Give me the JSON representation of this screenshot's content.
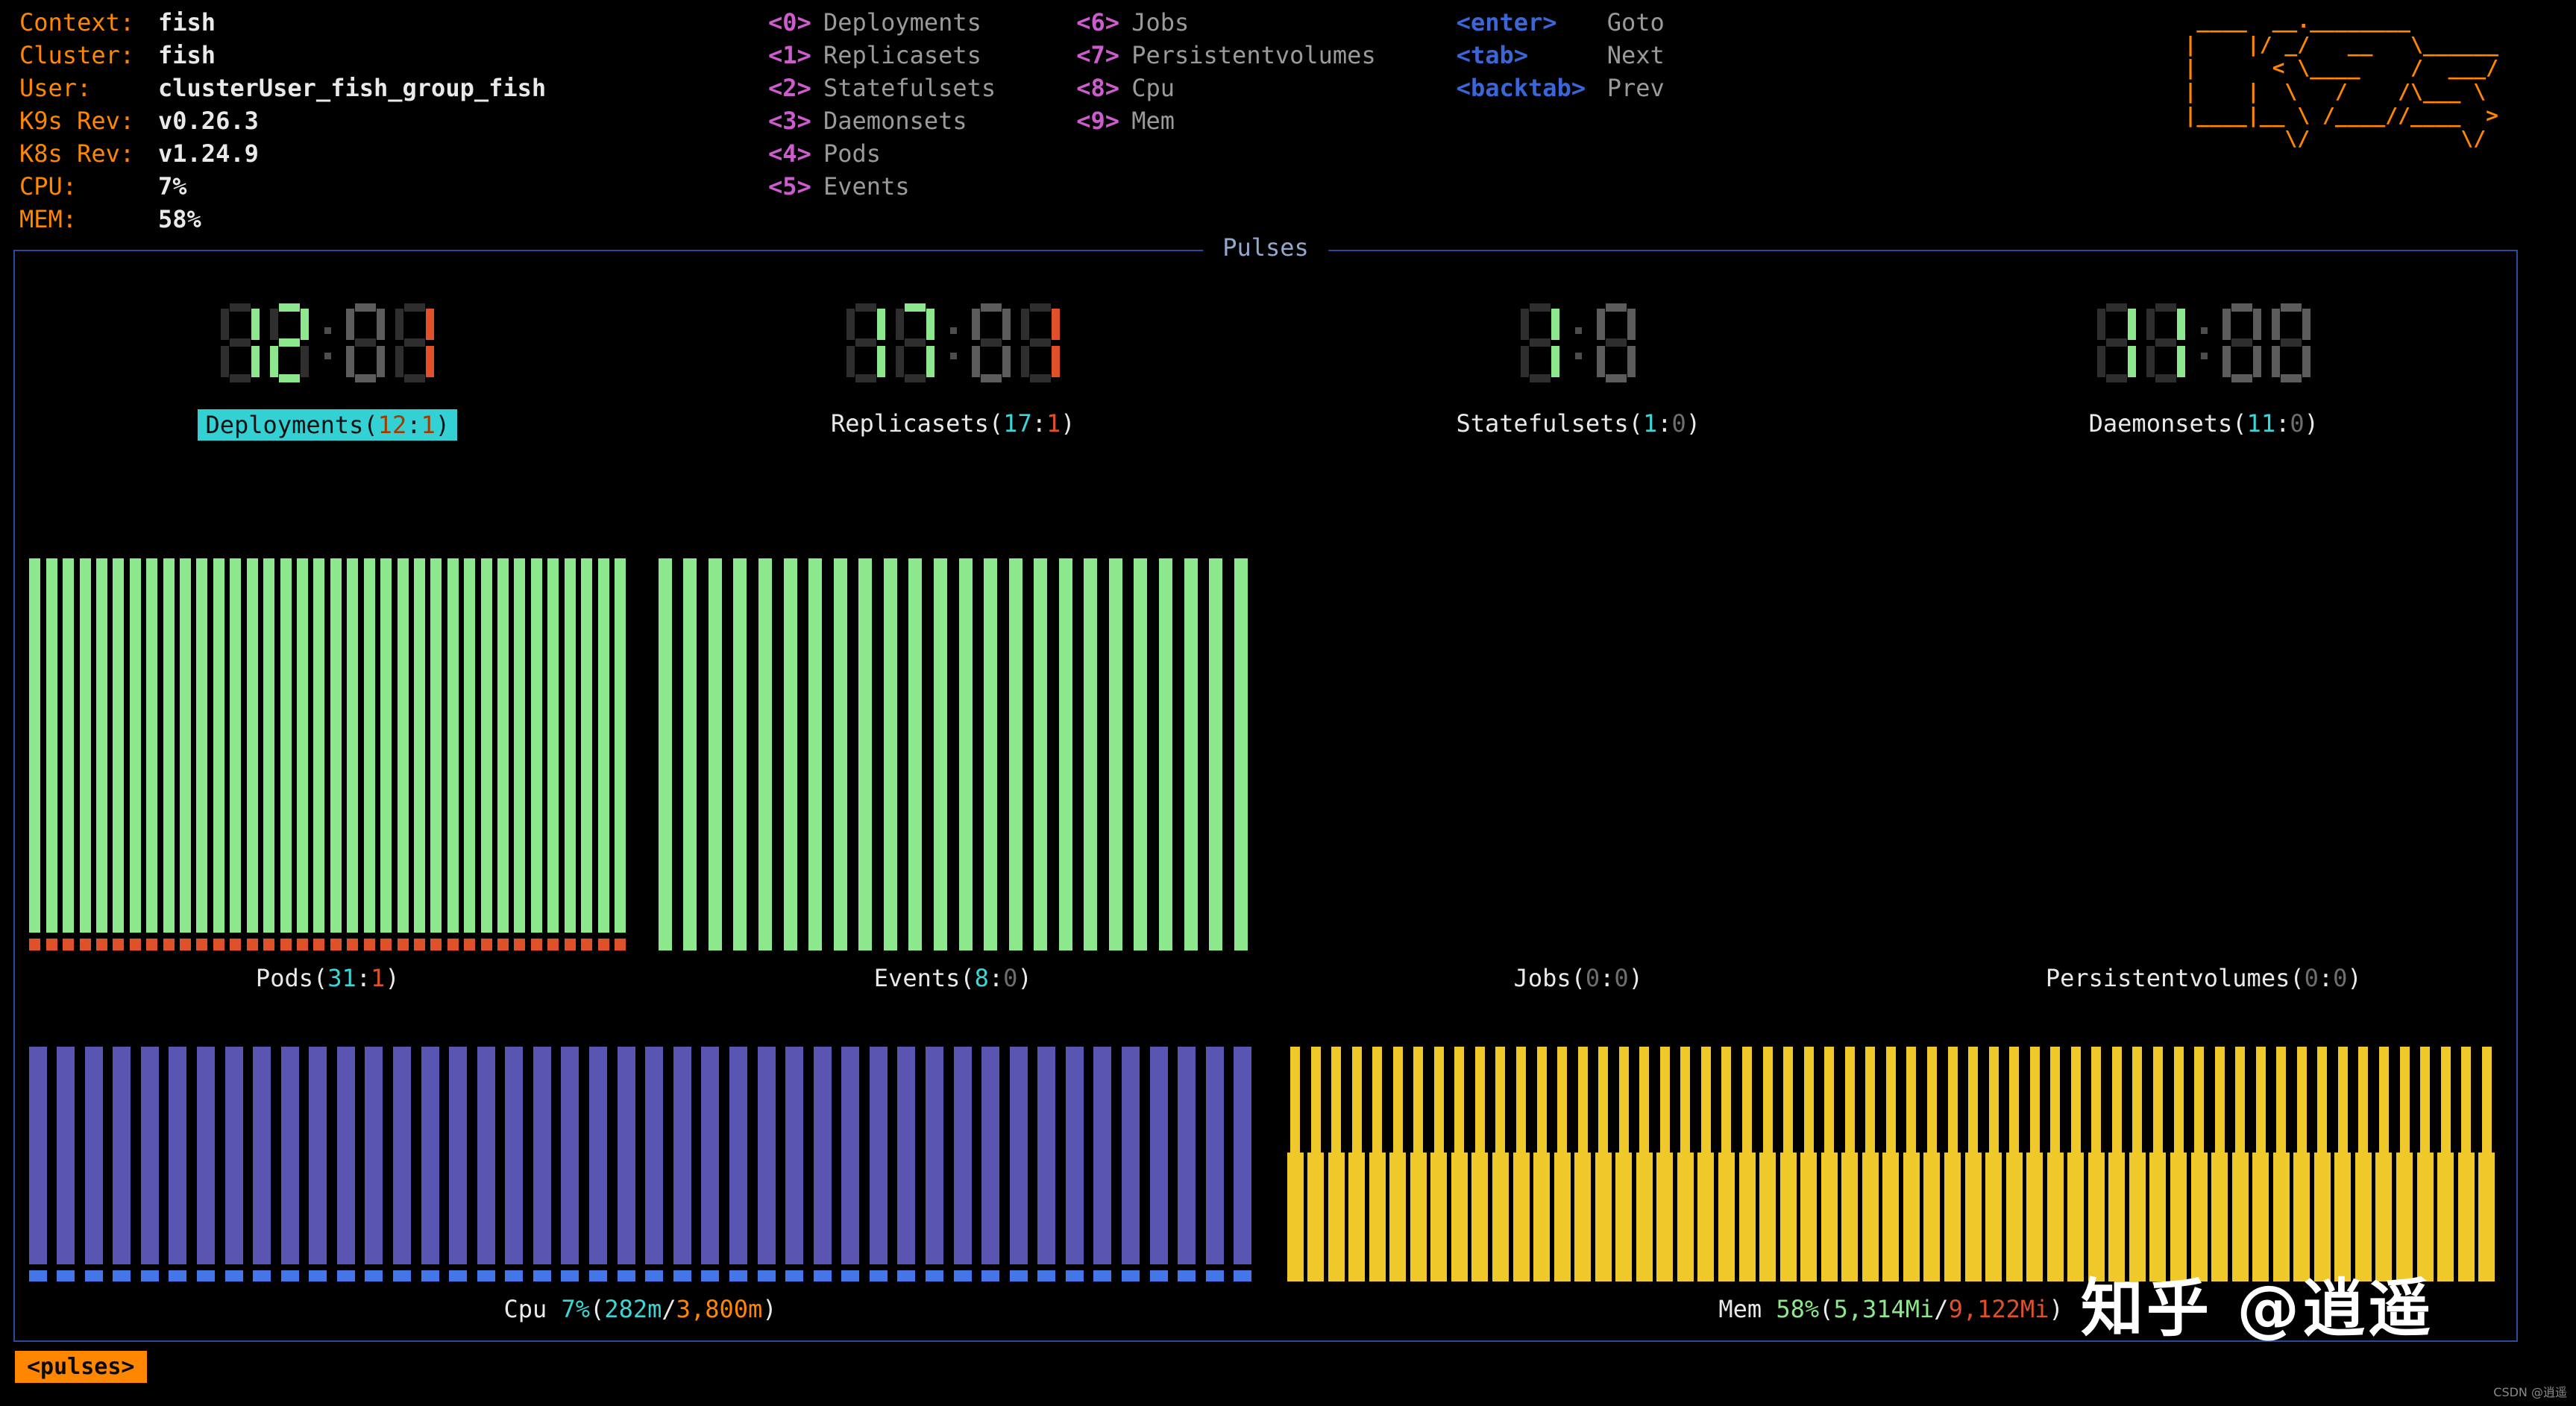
{
  "colors": {
    "orange": "#ff8700",
    "white": "#e9e9e9",
    "gray": "#9a9a9a",
    "magenta": "#cf5ccf",
    "key_blue": "#3a66d8",
    "cyan": "#3bd6d6",
    "green": "#8de88d",
    "red": "#e0512a",
    "dim": "#6e6e6e",
    "purple": "#5b55b2",
    "cap_blue": "#4476e8",
    "gold": "#efc92a",
    "border": "#2a4a9e",
    "title": "#93a8cc",
    "select_bg": "#33d1d4",
    "select_fg": "#101010",
    "select_num": "#a33c00"
  },
  "header": {
    "info": [
      {
        "label": "Context:",
        "value": "fish"
      },
      {
        "label": "Cluster:",
        "value": "fish"
      },
      {
        "label": "User:",
        "value": "clusterUser_fish_group_fish"
      },
      {
        "label": "K9s Rev:",
        "value": "v0.26.3"
      },
      {
        "label": "K8s Rev:",
        "value": "v1.24.9"
      },
      {
        "label": "CPU:",
        "value": "7%"
      },
      {
        "label": "MEM:",
        "value": "58%"
      }
    ],
    "menu_columns": [
      {
        "items": [
          {
            "key": "<0>",
            "label": "Deployments"
          },
          {
            "key": "<1>",
            "label": "Replicasets"
          },
          {
            "key": "<2>",
            "label": "Statefulsets"
          },
          {
            "key": "<3>",
            "label": "Daemonsets"
          },
          {
            "key": "<4>",
            "label": "Pods"
          },
          {
            "key": "<5>",
            "label": "Events"
          }
        ]
      },
      {
        "items": [
          {
            "key": "<6>",
            "label": "Jobs"
          },
          {
            "key": "<7>",
            "label": "Persistentvolumes"
          },
          {
            "key": "<8>",
            "label": "Cpu"
          },
          {
            "key": "<9>",
            "label": "Mem"
          }
        ]
      },
      {
        "items": [
          {
            "key": "<enter>",
            "label": "Goto"
          },
          {
            "key": "<tab>",
            "label": "Next"
          },
          {
            "key": "<backtab>",
            "label": "Prev"
          }
        ]
      }
    ],
    "logo_lines": [
      " ____  __.________",
      "|    |/ _/   __   \\______",
      "|      < \\____    /  ___/",
      "|    |  \\   /    /\\___ \\",
      "|____|__ \\ /____//____  >",
      "        \\/            \\/"
    ]
  },
  "panel": {
    "title": "Pulses",
    "gauges": [
      {
        "name": "Deployments",
        "ok": 12,
        "err": 1,
        "display": "12:01",
        "selected": true
      },
      {
        "name": "Replicasets",
        "ok": 17,
        "err": 1,
        "display": "17:01",
        "selected": false
      },
      {
        "name": "Statefulsets",
        "ok": 1,
        "err": 0,
        "display": "1:0",
        "selected": false
      },
      {
        "name": "Daemonsets",
        "ok": 11,
        "err": 0,
        "display": "11:00",
        "selected": false
      }
    ],
    "charts": [
      {
        "name": "Pods",
        "ok": 31,
        "err": 1,
        "type": "green-bars-red-cap",
        "bars": 36
      },
      {
        "name": "Events",
        "ok": 8,
        "err": 0,
        "type": "green-bars",
        "bars": 24
      },
      {
        "name": "Jobs",
        "ok": 0,
        "err": 0,
        "type": "none",
        "bars": 0
      },
      {
        "name": "Persistentvolumes",
        "ok": 0,
        "err": 0,
        "type": "none",
        "bars": 0
      }
    ],
    "usage_charts": [
      {
        "name": "Cpu",
        "percent": "7%",
        "used": "282m",
        "total": "3,800m",
        "type": "purple-bars-blue-cap",
        "bars": 44,
        "accent": "#3bd6d6",
        "limit": "#ff8700"
      },
      {
        "name": "Mem",
        "percent": "58%",
        "used": "5,314Mi",
        "total": "9,122Mi",
        "type": "gold-two-tier",
        "bars": 59,
        "accent": "#8de88d",
        "limit": "#e0512a"
      }
    ]
  },
  "crumb": "<pulses>",
  "watermark": "知乎 @逍遥",
  "watermark_small": "CSDN @逍遥"
}
